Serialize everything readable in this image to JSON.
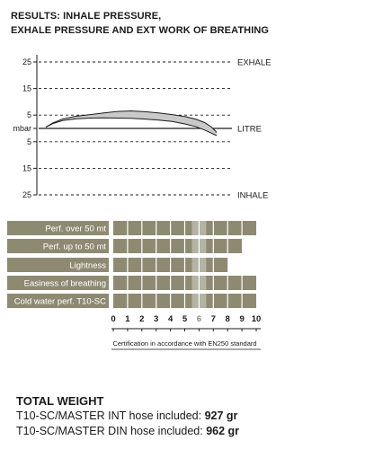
{
  "title": {
    "line1": "RESULTS: INHALE PRESSURE,",
    "line2": "EXHALE PRESSURE AND EXT WORK OF BREATHING"
  },
  "colors": {
    "bar": "#8e8a72",
    "band_fill": "#c9c9c9",
    "line": "#1a1a1a",
    "grid": "#1a1a1a",
    "highlight": "#ffffff"
  },
  "chart_data": [
    {
      "type": "line",
      "y_unit": "mbar",
      "y_ticks": [
        "25",
        "15",
        "5",
        "mbar",
        "5",
        "15",
        "25"
      ],
      "y_tick_values": [
        25,
        15,
        5,
        0,
        -5,
        -15,
        -25
      ],
      "y_range": [
        -25,
        25
      ],
      "right_labels": [
        {
          "y": 25,
          "text": "EXHALE"
        },
        {
          "y": 0,
          "text": "LITRE"
        },
        {
          "y": -25,
          "text": "INHALE"
        }
      ],
      "grid": "dashed at ±25, ±15, ±5; solid at 0",
      "series": [
        {
          "role": "upper-curve",
          "x": [
            0,
            0.04,
            0.1,
            0.18,
            0.26,
            0.34,
            0.42,
            0.5,
            0.58,
            0.66,
            0.74,
            0.82,
            0.88,
            0.93,
            0.97,
            1.0
          ],
          "y": [
            0.5,
            2.0,
            3.6,
            4.6,
            5.2,
            5.8,
            6.4,
            6.6,
            6.3,
            5.8,
            5.2,
            4.4,
            3.4,
            2.2,
            0.5,
            -1.5
          ]
        },
        {
          "role": "lower-curve",
          "x": [
            0,
            0.04,
            0.1,
            0.18,
            0.26,
            0.34,
            0.42,
            0.5,
            0.58,
            0.66,
            0.74,
            0.82,
            0.88,
            0.93,
            0.97,
            1.0
          ],
          "y": [
            0.5,
            1.8,
            3.0,
            3.6,
            3.9,
            4.0,
            3.9,
            3.8,
            3.5,
            3.1,
            2.6,
            1.6,
            0.6,
            -0.6,
            -1.8,
            -2.7
          ]
        }
      ]
    },
    {
      "type": "bar",
      "orientation": "horizontal",
      "categories": [
        "Perf. over 50 mt",
        "Perf. up to 50 mt",
        "Lightness",
        "Easiness of breathing",
        "Cold water perf.  T10-SC"
      ],
      "values": [
        10,
        9,
        8,
        10,
        10
      ],
      "x_ticks": [
        "0",
        "1",
        "2",
        "3",
        "4",
        "5",
        "6",
        "7",
        "8",
        "9",
        "10"
      ],
      "x_range": [
        0,
        10
      ],
      "highlight_tick": 6,
      "footnote": "Certification in accordance with EN250 standard"
    }
  ],
  "weight": {
    "title": "TOTAL WEIGHT",
    "lines": [
      {
        "label": "T10-SC/MASTER INT hose included: ",
        "value": "927 gr"
      },
      {
        "label": "T10-SC/MASTER DIN hose included: ",
        "value": "962 gr"
      }
    ]
  }
}
